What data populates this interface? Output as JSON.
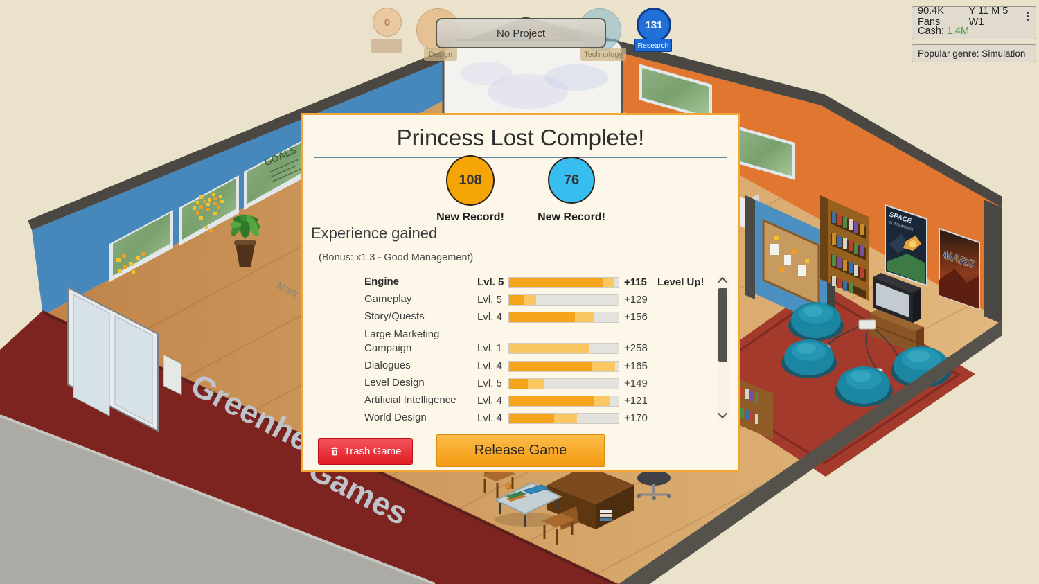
{
  "hud": {
    "project_bar": {
      "title": "No Project"
    },
    "bugs_bubble": {
      "value": "0"
    },
    "design_bubble": {
      "label": "Design"
    },
    "technology_bubble": {
      "label": "Technology"
    },
    "research_bubble": {
      "value": "131",
      "label": "Research"
    },
    "stats_box": {
      "fans": "90.4K Fans",
      "date": "Y 11 M 5 W1",
      "cash_label": "Cash:",
      "cash_value": "1.4M",
      "cash_color": "#3D9F3D",
      "menu_icon": "kebab-menu-icon"
    },
    "genre_box": {
      "text": "Popular genre: Simulation"
    }
  },
  "dialog": {
    "title": "Princess Lost Complete!",
    "scores": [
      {
        "type": "design",
        "value": "108",
        "record": "New Record!",
        "color": "#F5A506"
      },
      {
        "type": "technology",
        "value": "76",
        "record": "New Record!",
        "color": "#38BEEE"
      }
    ],
    "experience": {
      "heading": "Experience gained",
      "bonus": "(Bonus: x1.3 - Good Management)"
    },
    "bar_colors": {
      "base": "#F6A41C",
      "gain": "#FBC763",
      "track": "#E4E2DC"
    },
    "skills": [
      {
        "name": "Engine",
        "level": "Lvl. 5",
        "base_pct": 86,
        "gain_pct": 10,
        "value": "+115",
        "extra": "Level Up!",
        "highlight": true
      },
      {
        "name": "Gameplay",
        "level": "Lvl. 5",
        "base_pct": 13,
        "gain_pct": 12,
        "value": "+129",
        "extra": ""
      },
      {
        "name": "Story/Quests",
        "level": "Lvl. 4",
        "base_pct": 60,
        "gain_pct": 17,
        "value": "+156",
        "extra": ""
      },
      {
        "name": "Large Marketing Campaign",
        "level": "Lvl. 1",
        "base_pct": 0,
        "gain_pct": 73,
        "value": "+258",
        "extra": "",
        "two_line": true
      },
      {
        "name": "Dialogues",
        "level": "Lvl. 4",
        "base_pct": 76,
        "gain_pct": 21,
        "value": "+165",
        "extra": ""
      },
      {
        "name": "Level Design",
        "level": "Lvl. 5",
        "base_pct": 17,
        "gain_pct": 15,
        "value": "+149",
        "extra": ""
      },
      {
        "name": "Artificial Intelligence",
        "level": "Lvl. 4",
        "base_pct": 78,
        "gain_pct": 14,
        "value": "+121",
        "extra": ""
      },
      {
        "name": "World Design",
        "level": "Lvl. 4",
        "base_pct": 41,
        "gain_pct": 21,
        "value": "+170",
        "extra": ""
      }
    ],
    "buttons": {
      "trash": "Trash Game",
      "release": "Release Game"
    }
  },
  "scene": {
    "sign_line1": "Greenheart",
    "sign_line2": "Games",
    "goals_board": "GOALS",
    "floor_name": "Mark",
    "poster_space_title": "SPACE",
    "poster_space_subtitle": "COMMANDER",
    "poster_mars_title": "MARS"
  }
}
